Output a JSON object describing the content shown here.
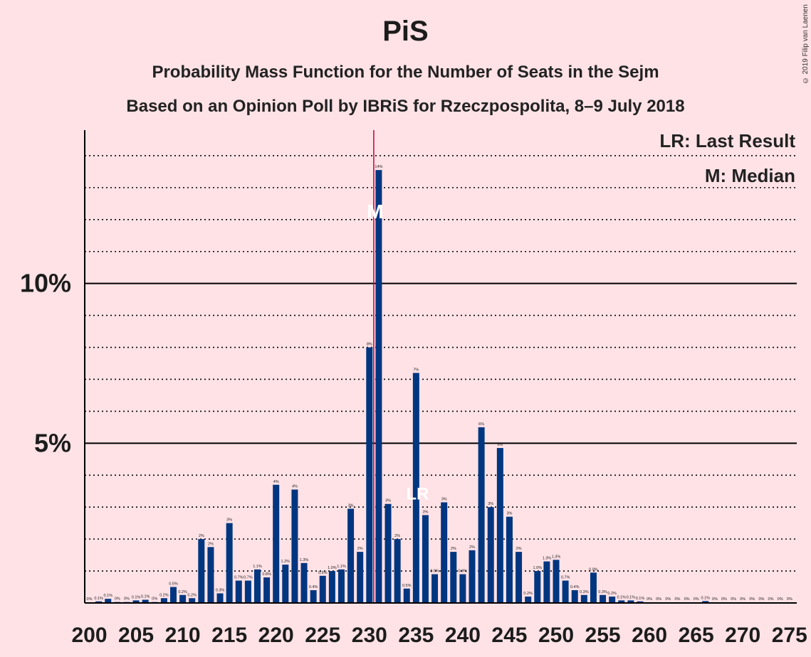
{
  "chart_data": {
    "type": "bar",
    "title": "PiS",
    "subtitle": "Probability Mass Function for the Number of Seats in the Sejm",
    "subtitle2": "Based on an Opinion Poll by IBRiS for Rzeczpospolita, 8–9 July 2018",
    "copyright": "© 2019 Filip van Laenen",
    "legend": {
      "lr": "LR: Last Result",
      "m": "M: Median",
      "placement": "top-right"
    },
    "ylim": [
      0,
      14.8
    ],
    "xlim": [
      200,
      275
    ],
    "y_ticks": [
      {
        "value": 5,
        "label": "5%"
      },
      {
        "value": 10,
        "label": "10%"
      }
    ],
    "x_tick_labels": [
      "200",
      "205",
      "210",
      "215",
      "220",
      "225",
      "230",
      "235",
      "240",
      "245",
      "250",
      "255",
      "260",
      "265",
      "270",
      "275"
    ],
    "median_seat": 231,
    "median_marker_label": "M",
    "last_result_seat": 235,
    "last_result_marker_label": "LR",
    "colors": {
      "bar": "#003680",
      "median_line": "#c0003c",
      "background": "#ffe2e6"
    },
    "seats": [
      200,
      201,
      202,
      203,
      204,
      205,
      206,
      207,
      208,
      209,
      210,
      211,
      212,
      213,
      214,
      215,
      216,
      217,
      218,
      219,
      220,
      221,
      222,
      223,
      224,
      225,
      226,
      227,
      228,
      229,
      230,
      231,
      232,
      233,
      234,
      235,
      236,
      237,
      238,
      239,
      240,
      241,
      242,
      243,
      244,
      245,
      246,
      247,
      248,
      249,
      250,
      251,
      252,
      253,
      254,
      255,
      256,
      257,
      258,
      259,
      260,
      261,
      262,
      263,
      264,
      265,
      266,
      267,
      268,
      269,
      270,
      271,
      272,
      273,
      274,
      275
    ],
    "values": [
      0.02,
      0.05,
      0.13,
      0.03,
      0.03,
      0.08,
      0.1,
      0.03,
      0.15,
      0.5,
      0.25,
      0.15,
      2.0,
      1.75,
      0.3,
      2.5,
      0.7,
      0.7,
      1.05,
      0.8,
      3.7,
      1.2,
      3.55,
      1.25,
      0.4,
      0.85,
      1.0,
      1.05,
      2.95,
      1.6,
      8.0,
      13.55,
      3.1,
      2.0,
      0.45,
      7.2,
      2.75,
      0.9,
      3.15,
      1.6,
      0.9,
      1.65,
      5.5,
      3.0,
      4.85,
      2.7,
      1.6,
      0.2,
      1.0,
      1.3,
      1.35,
      0.7,
      0.4,
      0.25,
      0.95,
      0.25,
      0.2,
      0.08,
      0.08,
      0.05,
      0.02,
      0.02,
      0.02,
      0.02,
      0.02,
      0.02,
      0.06,
      0.02,
      0.02,
      0.02,
      0.02,
      0.02,
      0.02,
      0.02,
      0.02,
      0.02
    ],
    "bar_labels": [
      "0%",
      "0.1%",
      "0.1%",
      "0%",
      "0%",
      "0.1%",
      "0.1%",
      "0%",
      "0.2%",
      "0.5%",
      "0.2%",
      "0.2%",
      "2%",
      "2%",
      "0.3%",
      "3%",
      "0.7%",
      "0.7%",
      "1.1%",
      "0.8%",
      "4%",
      "1.2%",
      "4%",
      "1.3%",
      "0.4%",
      "0.9%",
      "1.0%",
      "1.1%",
      "3%",
      "2%",
      "8%",
      "14%",
      "3%",
      "2%",
      "0.5%",
      "7%",
      "3%",
      "0.9%",
      "3%",
      "2%",
      "0.9%",
      "2%",
      "6%",
      "3%",
      "5%",
      "3%",
      "2%",
      "0.2%",
      "1.0%",
      "1.3%",
      "1.3%",
      "0.7%",
      "0.4%",
      "0.3%",
      "0.9%",
      "0.3%",
      "0.2%",
      "0.1%",
      "0.1%",
      "0.1%",
      "0%",
      "0%",
      "0%",
      "0%",
      "0%",
      "0%",
      "0.1%",
      "0%",
      "0%",
      "0%",
      "0%",
      "0%",
      "0%",
      "0%",
      "0%",
      "0%"
    ]
  }
}
